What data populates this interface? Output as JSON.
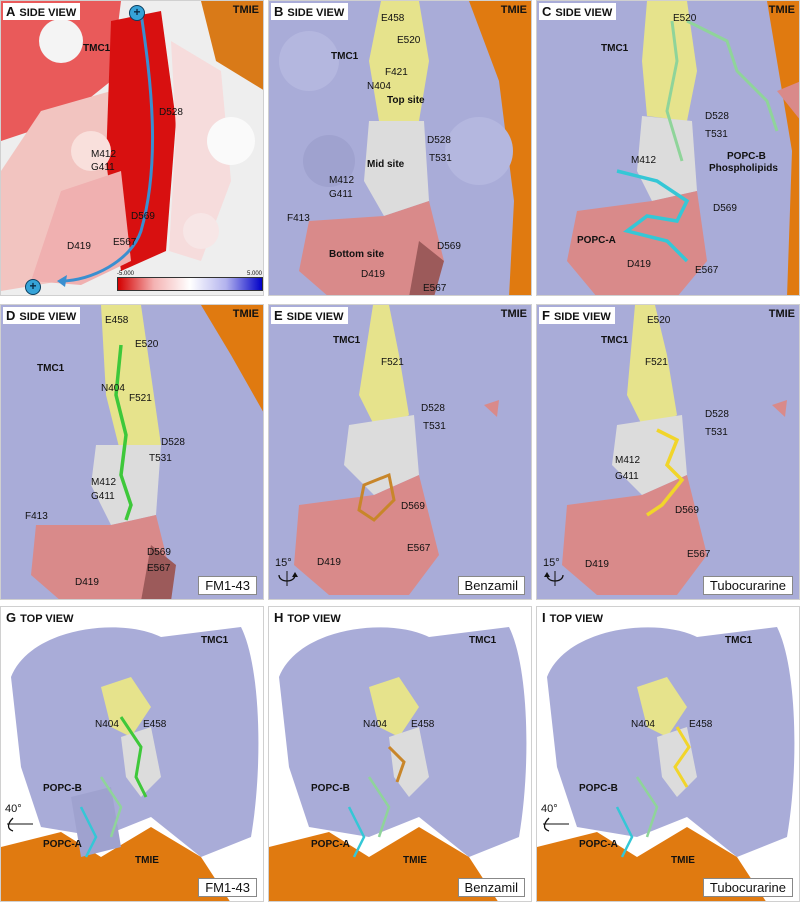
{
  "panels": {
    "A": {
      "letter": "A",
      "view": "SIDE VIEW",
      "tmie": "TMIE",
      "tmc1": "TMC1",
      "residues": [
        "D528",
        "M412",
        "G411",
        "D569",
        "D419",
        "E567"
      ],
      "colorbar_min": "-5.000",
      "colorbar_max": "5.000",
      "plus": "+"
    },
    "B": {
      "letter": "B",
      "view": "SIDE VIEW",
      "tmie": "TMIE",
      "tmc1": "TMC1",
      "residues": [
        "E458",
        "E520",
        "F421",
        "N404",
        "D528",
        "T531",
        "M412",
        "G411",
        "F413",
        "D569",
        "D419",
        "E567"
      ],
      "sites": [
        "Top site",
        "Mid site",
        "Bottom site"
      ]
    },
    "C": {
      "letter": "C",
      "view": "SIDE VIEW",
      "tmie": "TMIE",
      "tmc1": "TMC1",
      "residues": [
        "E520",
        "D528",
        "T531",
        "M412",
        "D569",
        "D419",
        "E567"
      ],
      "lipids": [
        "POPC-B",
        "Phospholipids",
        "POPC-A"
      ]
    },
    "D": {
      "letter": "D",
      "view": "SIDE VIEW",
      "tmie": "TMIE",
      "tmc1": "TMC1",
      "residues": [
        "E458",
        "E520",
        "N404",
        "F521",
        "D528",
        "T531",
        "M412",
        "G411",
        "F413",
        "D569",
        "D419",
        "E567"
      ],
      "drug": "FM1-43"
    },
    "E": {
      "letter": "E",
      "view": "SIDE VIEW",
      "tmie": "TMIE",
      "tmc1": "TMC1",
      "residues": [
        "F521",
        "D528",
        "T531",
        "D569",
        "D419",
        "E567"
      ],
      "drug": "Benzamil",
      "rotation": "15°"
    },
    "F": {
      "letter": "F",
      "view": "SIDE VIEW",
      "tmie": "TMIE",
      "tmc1": "TMC1",
      "residues": [
        "E520",
        "F521",
        "D528",
        "T531",
        "M412",
        "G411",
        "D569",
        "D419",
        "E567"
      ],
      "drug": "Tubocurarine",
      "rotation": "15°"
    },
    "G": {
      "letter": "G",
      "view": "TOP VIEW",
      "tmie": "TMIE",
      "tmc1": "TMC1",
      "residues": [
        "N404",
        "E458"
      ],
      "lipids": [
        "POPC-B",
        "POPC-A"
      ],
      "drug": "FM1-43",
      "rotation": "40°"
    },
    "H": {
      "letter": "H",
      "view": "TOP VIEW",
      "tmie": "TMIE",
      "tmc1": "TMC1",
      "residues": [
        "N404",
        "E458"
      ],
      "lipids": [
        "POPC-B",
        "POPC-A"
      ],
      "drug": "Benzamil"
    },
    "I": {
      "letter": "I",
      "view": "TOP VIEW",
      "tmie": "TMIE",
      "tmc1": "TMC1",
      "residues": [
        "N404",
        "E458"
      ],
      "lipids": [
        "POPC-B",
        "POPC-A"
      ],
      "drug": "Tubocurarine",
      "rotation": "40°"
    }
  },
  "colors": {
    "tmc1_surface": "#a9acd8",
    "tmie_surface": "#e07a10",
    "top_site": "#e6e38c",
    "mid_site": "#dcdcdc",
    "bottom_site": "#d98a8a",
    "negative": "#d40000",
    "positive": "#0000c8",
    "fm143": "#3ec83a",
    "benzamil": "#c8862a",
    "tubocurarine": "#f1d52a",
    "popc_a": "#35c7d6",
    "popc_b": "#8fd49a",
    "path_arrow": "#3a8fd0"
  }
}
